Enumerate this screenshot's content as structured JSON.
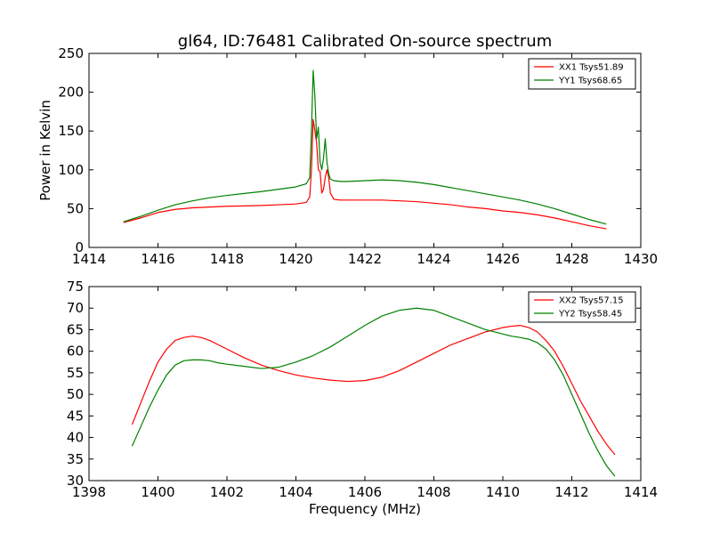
{
  "figure": {
    "background": "#ffffff"
  },
  "chart_data": [
    {
      "type": "line",
      "title": "gl64, ID:76481 Calibrated On-source spectrum",
      "xlabel": "",
      "ylabel": "Power in Kelvin",
      "xlim": [
        1414,
        1430
      ],
      "ylim": [
        0,
        250
      ],
      "xticks": [
        1414,
        1416,
        1418,
        1420,
        1422,
        1424,
        1426,
        1428,
        1430
      ],
      "yticks": [
        0,
        50,
        100,
        150,
        200,
        250
      ],
      "xtick_labels": [
        "1414",
        "1416",
        "1418",
        "1420",
        "1422",
        "1424",
        "1426",
        "1428",
        "1430"
      ],
      "ytick_labels": [
        "0",
        "50",
        "100",
        "150",
        "200",
        "250"
      ],
      "grid": false,
      "legend": {
        "placement": "top-right"
      },
      "series": [
        {
          "name": "XX1 Tsys51.89",
          "color": "#ff0000",
          "x": [
            1415.0,
            1415.5,
            1416.0,
            1416.5,
            1417.0,
            1417.5,
            1418.0,
            1418.5,
            1419.0,
            1419.5,
            1420.0,
            1420.3,
            1420.4,
            1420.45,
            1420.5,
            1420.55,
            1420.6,
            1420.65,
            1420.7,
            1420.75,
            1420.8,
            1420.85,
            1420.9,
            1420.95,
            1421.0,
            1421.1,
            1421.3,
            1421.5,
            1422.0,
            1422.5,
            1423.0,
            1423.5,
            1424.0,
            1424.5,
            1425.0,
            1425.5,
            1426.0,
            1426.5,
            1427.0,
            1427.5,
            1428.0,
            1428.5,
            1429.0
          ],
          "y": [
            32,
            38,
            45,
            49,
            51,
            52,
            53,
            53.5,
            54,
            55,
            56,
            58,
            65,
            100,
            165,
            150,
            135,
            100,
            98,
            70,
            75,
            90,
            100,
            90,
            70,
            62,
            61,
            61,
            61,
            61,
            60,
            59,
            57,
            55,
            52,
            50,
            47,
            45,
            42,
            38,
            33,
            28,
            24
          ]
        },
        {
          "name": "YY1 Tsys68.65",
          "color": "#008000",
          "x": [
            1415.0,
            1415.5,
            1416.0,
            1416.5,
            1417.0,
            1417.5,
            1418.0,
            1418.5,
            1419.0,
            1419.5,
            1420.0,
            1420.3,
            1420.4,
            1420.45,
            1420.5,
            1420.55,
            1420.6,
            1420.65,
            1420.7,
            1420.75,
            1420.8,
            1420.85,
            1420.9,
            1420.95,
            1421.0,
            1421.1,
            1421.3,
            1421.5,
            1422.0,
            1422.5,
            1423.0,
            1423.5,
            1424.0,
            1424.5,
            1425.0,
            1425.5,
            1426.0,
            1426.5,
            1427.0,
            1427.5,
            1428.0,
            1428.5,
            1429.0
          ],
          "y": [
            33,
            40,
            48,
            55,
            60,
            64,
            67,
            69.5,
            72,
            75,
            78,
            82,
            90,
            150,
            228,
            195,
            140,
            155,
            110,
            100,
            115,
            140,
            110,
            95,
            88,
            86,
            85,
            85,
            86,
            87,
            86,
            84,
            81,
            77,
            73,
            69,
            65,
            61,
            56,
            50,
            43,
            36,
            30
          ]
        }
      ]
    },
    {
      "type": "line",
      "title": "",
      "xlabel": "Frequency (MHz)",
      "ylabel": "",
      "xlim": [
        1398,
        1414
      ],
      "ylim": [
        30,
        75
      ],
      "xticks": [
        1398,
        1400,
        1402,
        1404,
        1406,
        1408,
        1410,
        1412,
        1414
      ],
      "yticks": [
        30,
        35,
        40,
        45,
        50,
        55,
        60,
        65,
        70,
        75
      ],
      "xtick_labels": [
        "1398",
        "1400",
        "1402",
        "1404",
        "1406",
        "1408",
        "1410",
        "1412",
        "1414"
      ],
      "ytick_labels": [
        "30",
        "35",
        "40",
        "45",
        "50",
        "55",
        "60",
        "65",
        "70",
        "75"
      ],
      "grid": false,
      "legend": {
        "placement": "top-right"
      },
      "series": [
        {
          "name": "XX2 Tsys57.15",
          "color": "#ff0000",
          "x": [
            1399.25,
            1399.5,
            1399.75,
            1400.0,
            1400.25,
            1400.5,
            1400.75,
            1401.0,
            1401.25,
            1401.5,
            1401.75,
            1402.0,
            1402.5,
            1403.0,
            1403.5,
            1404.0,
            1404.5,
            1405.0,
            1405.5,
            1406.0,
            1406.5,
            1407.0,
            1407.5,
            1408.0,
            1408.5,
            1409.0,
            1409.5,
            1410.0,
            1410.25,
            1410.5,
            1410.75,
            1411.0,
            1411.25,
            1411.5,
            1411.75,
            1412.0,
            1412.25,
            1412.5,
            1412.75,
            1413.0,
            1413.25
          ],
          "y": [
            43,
            48,
            53,
            57.5,
            60.5,
            62.5,
            63.2,
            63.5,
            63.2,
            62.5,
            61.5,
            60.5,
            58.5,
            56.8,
            55.5,
            54.5,
            53.8,
            53.3,
            53,
            53.2,
            54,
            55.5,
            57.5,
            59.5,
            61.5,
            63,
            64.5,
            65.5,
            65.8,
            66,
            65.5,
            64.5,
            62.5,
            60,
            56.5,
            52.5,
            48.5,
            45,
            41.5,
            38.5,
            36
          ]
        },
        {
          "name": "YY2 Tsys58.45",
          "color": "#008000",
          "x": [
            1399.25,
            1399.5,
            1399.75,
            1400.0,
            1400.25,
            1400.5,
            1400.75,
            1401.0,
            1401.25,
            1401.5,
            1401.75,
            1402.0,
            1402.5,
            1403.0,
            1403.5,
            1404.0,
            1404.5,
            1405.0,
            1405.5,
            1406.0,
            1406.5,
            1407.0,
            1407.5,
            1408.0,
            1408.5,
            1409.0,
            1409.5,
            1410.0,
            1410.25,
            1410.5,
            1410.75,
            1411.0,
            1411.25,
            1411.5,
            1411.75,
            1412.0,
            1412.25,
            1412.5,
            1412.75,
            1413.0,
            1413.25
          ],
          "y": [
            38,
            42.5,
            47,
            51,
            54.5,
            56.8,
            57.8,
            58,
            58,
            57.8,
            57.3,
            57,
            56.5,
            56,
            56.3,
            57.5,
            59,
            61,
            63.5,
            66,
            68.2,
            69.5,
            70,
            69.5,
            68,
            66.5,
            65,
            64,
            63.5,
            63.2,
            62.8,
            62,
            60.5,
            58,
            54.5,
            50,
            45.5,
            41,
            37,
            33.5,
            31
          ]
        }
      ]
    }
  ]
}
